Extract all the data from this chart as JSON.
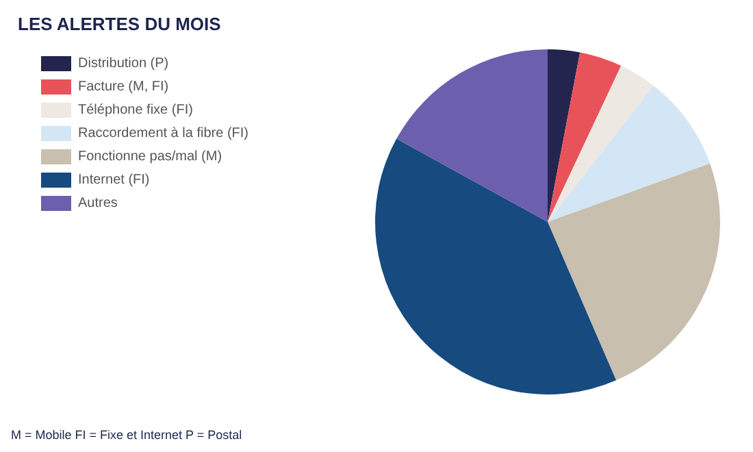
{
  "chart_data": {
    "type": "pie",
    "title": "LES ALERTES DU MOIS",
    "categories": [
      "Distribution (P)",
      "Facture (M, FI)",
      "Téléphone fixe (FI)",
      "Raccordement à la fibre (FI)",
      "Fonctionne pas/mal (M)",
      "Internet (FI)",
      "Autres"
    ],
    "values": [
      3,
      4,
      3.5,
      9,
      24,
      39.5,
      17
    ],
    "colors": [
      "#23254f",
      "#e8535a",
      "#ede8e1",
      "#d3e6f5",
      "#c9bfaf",
      "#174a7e",
      "#6b5fae"
    ],
    "legend": "left",
    "annotations": [
      "M = Mobile FI = Fixe et Internet P = Postal"
    ]
  }
}
